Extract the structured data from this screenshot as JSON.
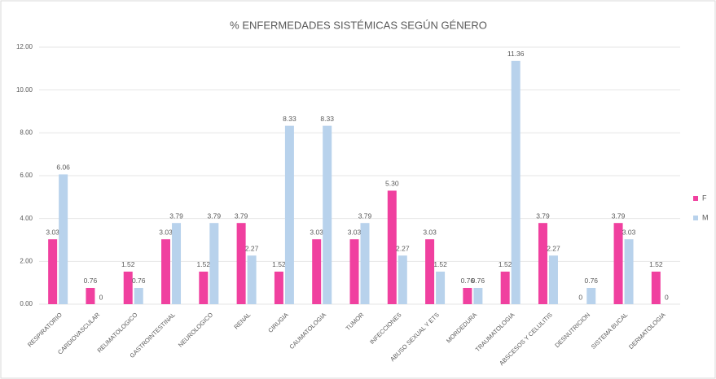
{
  "chart_data": {
    "type": "bar",
    "title": "% ENFERMEDADES SISTÉMICAS SEGÚN GÉNERO",
    "categories": [
      "RESPIRATORIO",
      "CARDIOVASCULAR",
      "REUMATOLOGICO",
      "GASTROINTESTINAL",
      "NEUROLOGICO",
      "RENAL",
      "CIRUGIA",
      "CAUMATOLOGIA",
      "TUMOR",
      "INFECCIONES",
      "ABUSO SEXUAL Y ETS",
      "MORDEDURA",
      "TRAUMATOLOGIA",
      "ABSCESOS Y CELULITIS",
      "DESNUTRICION",
      "SISTEMA BUCAL",
      "DERMATOLOGIA"
    ],
    "series": [
      {
        "name": "F",
        "color": "#f0409f",
        "values": [
          3.03,
          0.76,
          1.52,
          3.03,
          1.52,
          3.79,
          1.52,
          3.03,
          3.03,
          5.3,
          3.03,
          0.76,
          1.52,
          3.79,
          0,
          3.79,
          1.52
        ],
        "value_labels": [
          "3.03",
          "0.76",
          "1.52",
          "3.03",
          "1.52",
          "3.79",
          "1.52",
          "3.03",
          "3.03",
          "5.30",
          "3.03",
          "0.76",
          "1.52",
          "3.79",
          "0",
          "3.79",
          "1.52"
        ]
      },
      {
        "name": "M",
        "color": "#b8d2ec",
        "values": [
          6.06,
          0,
          0.76,
          3.79,
          3.79,
          2.27,
          8.33,
          8.33,
          3.79,
          2.27,
          1.52,
          0.76,
          11.36,
          2.27,
          0.76,
          3.03,
          0
        ],
        "value_labels": [
          "6.06",
          "0",
          "0.76",
          "3.79",
          "3.79",
          "2.27",
          "8.33",
          "8.33",
          "3.79",
          "2.27",
          "1.52",
          "0.76",
          "11.36",
          "2.27",
          "0.76",
          "3.03",
          "0"
        ]
      }
    ],
    "ylim": [
      0,
      12
    ],
    "yticks": [
      {
        "value": 0,
        "label": "0.00"
      },
      {
        "value": 2,
        "label": "2.00"
      },
      {
        "value": 4,
        "label": "4.00"
      },
      {
        "value": 6,
        "label": "6.00"
      },
      {
        "value": 8,
        "label": "8.00"
      },
      {
        "value": 10,
        "label": "10.00"
      },
      {
        "value": 12,
        "label": "12.00"
      }
    ],
    "grid": true,
    "legend": "right"
  }
}
